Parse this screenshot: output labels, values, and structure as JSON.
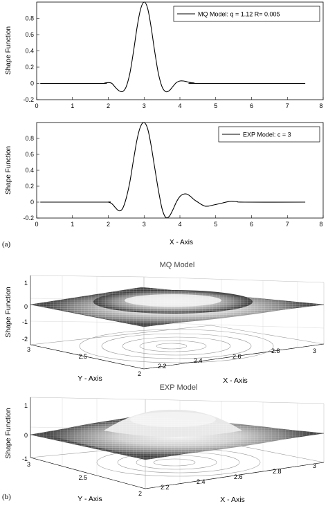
{
  "chart_data": [
    {
      "type": "line",
      "panel": "(a)",
      "ylabel": "Shape Function",
      "xlabel": "",
      "xlim": [
        0,
        8
      ],
      "ylim": [
        -0.2,
        1.0
      ],
      "xticks": [
        "0",
        "1",
        "2",
        "3",
        "4",
        "5",
        "6",
        "7",
        "8"
      ],
      "yticks": [
        "-0.2",
        "0",
        "0.2",
        "0.4",
        "0.6",
        "0.8"
      ],
      "legend_position": "top-right",
      "series": [
        {
          "name": "MQ Model: q = 1.12 R= 0.005",
          "color": "#000000",
          "x": [
            0.1,
            1.8,
            1.9,
            2.0,
            2.1,
            2.2,
            2.3,
            2.4,
            2.5,
            2.6,
            2.7,
            2.8,
            2.9,
            3.0,
            3.1,
            3.2,
            3.3,
            3.4,
            3.5,
            3.6,
            3.7,
            3.8,
            3.9,
            4.0,
            4.1,
            4.2,
            4.3,
            4.4,
            4.5,
            7.5
          ],
          "y": [
            0,
            0,
            0.005,
            0.01,
            0,
            -0.05,
            -0.09,
            -0.1,
            -0.04,
            0.12,
            0.38,
            0.68,
            0.91,
            1.0,
            0.92,
            0.68,
            0.38,
            0.12,
            -0.04,
            -0.1,
            -0.09,
            -0.04,
            0.01,
            0.03,
            0.03,
            0.02,
            0.01,
            0.005,
            0,
            0
          ]
        }
      ]
    },
    {
      "type": "line",
      "ylabel": "Shape Function",
      "xlabel": "X - Axis",
      "xlim": [
        0,
        8
      ],
      "ylim": [
        -0.2,
        1.0
      ],
      "xticks": [
        "0",
        "1",
        "2",
        "3",
        "4",
        "5",
        "6",
        "7",
        "8"
      ],
      "yticks": [
        "-0.2",
        "0",
        "0.2",
        "0.4",
        "0.6",
        "0.8"
      ],
      "legend_position": "top-right",
      "series": [
        {
          "name": "EXP Model: c = 3",
          "color": "#000000",
          "x": [
            0.1,
            1.9,
            2.0,
            2.1,
            2.2,
            2.3,
            2.4,
            2.5,
            2.6,
            2.7,
            2.8,
            2.9,
            3.0,
            3.1,
            3.2,
            3.3,
            3.4,
            3.5,
            3.6,
            3.7,
            3.8,
            3.9,
            4.0,
            4.1,
            4.2,
            4.3,
            4.4,
            4.5,
            4.6,
            4.7,
            4.8,
            4.9,
            5.0,
            5.2,
            5.4,
            5.6,
            5.8,
            7.5
          ],
          "y": [
            0,
            0,
            0,
            -0.02,
            -0.07,
            -0.11,
            -0.08,
            0.05,
            0.25,
            0.52,
            0.78,
            0.95,
            1.0,
            0.92,
            0.7,
            0.42,
            0.15,
            -0.08,
            -0.19,
            -0.18,
            -0.1,
            0.0,
            0.07,
            0.1,
            0.1,
            0.07,
            0.03,
            0.0,
            -0.03,
            -0.05,
            -0.05,
            -0.04,
            -0.03,
            -0.01,
            0.01,
            0.005,
            0,
            0
          ]
        }
      ]
    },
    {
      "type": "surface",
      "panel": "(b)",
      "title": "MQ Model",
      "xlabel": "X - Axis",
      "ylabel": "Y - Axis",
      "zlabel": "Shape Function",
      "xlim": [
        2,
        3
      ],
      "ylim": [
        2,
        3
      ],
      "zlim": [
        -2,
        1
      ],
      "xticks": [
        "2",
        "2.2",
        "2.4",
        "2.6",
        "2.8",
        "3"
      ],
      "yticks": [
        "2",
        "2.5",
        "3"
      ],
      "zticks": [
        "-2",
        "-1",
        "0",
        "1"
      ],
      "peak": {
        "x": 2.5,
        "y": 2.5,
        "z": 1
      },
      "contour_plane": -2
    },
    {
      "type": "surface",
      "title": "EXP Model",
      "xlabel": "X - Axis",
      "ylabel": "Y - Axis",
      "zlabel": "Shape Function",
      "xlim": [
        2,
        3
      ],
      "ylim": [
        2,
        3
      ],
      "zlim": [
        -1,
        1
      ],
      "xticks": [
        "2",
        "2.2",
        "2.4",
        "2.6",
        "2.8",
        "3"
      ],
      "yticks": [
        "2",
        "2.5",
        "3"
      ],
      "zticks": [
        "-1",
        "0",
        "1"
      ],
      "peak": {
        "x": 2.5,
        "y": 2.5,
        "z": 1
      },
      "contour_plane": -1
    }
  ]
}
